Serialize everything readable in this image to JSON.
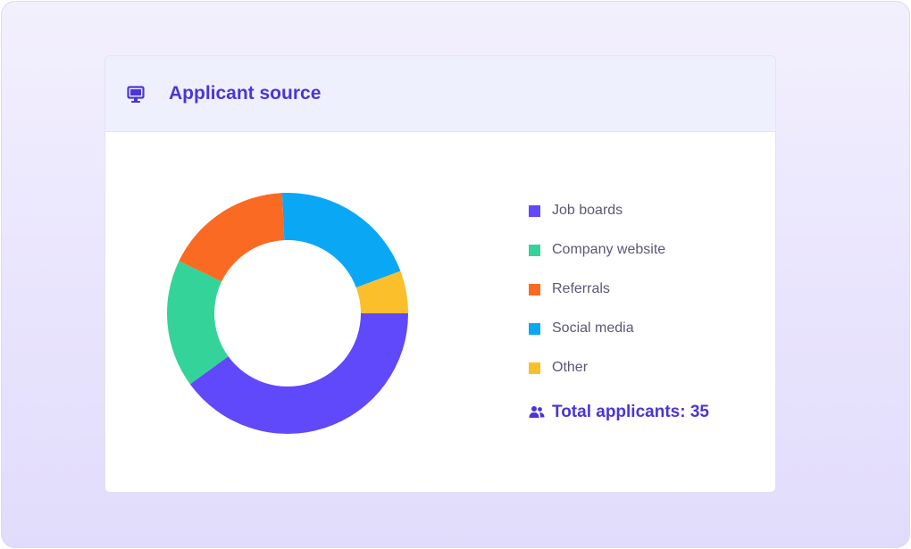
{
  "card": {
    "title": "Applicant source",
    "icon": "monitor-icon"
  },
  "chart_data": {
    "type": "pie",
    "variant": "donut",
    "categories": [
      "Job boards",
      "Company website",
      "Referrals",
      "Social media",
      "Other"
    ],
    "values": [
      14,
      6,
      6,
      7,
      2
    ],
    "colors": [
      "#6048fb",
      "#34d399",
      "#fb6a22",
      "#0aa7f5",
      "#fbbf2c"
    ],
    "legend": "right"
  },
  "total": {
    "icon": "users-icon",
    "label": "Total applicants: 35"
  }
}
